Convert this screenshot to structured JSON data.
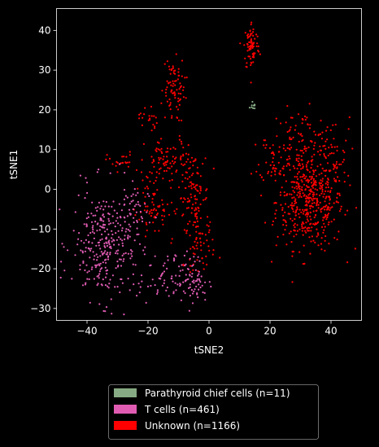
{
  "chart_data": {
    "type": "scatter",
    "xlabel": "tSNE2",
    "ylabel": "tSNE1",
    "xlim": [
      -50,
      50
    ],
    "ylim": [
      -33,
      45.5
    ],
    "xticks": [
      -40,
      -20,
      0,
      20,
      40
    ],
    "yticks": [
      -30,
      -20,
      -10,
      0,
      10,
      20,
      30,
      40
    ],
    "background": "#000000",
    "legend_position": "below plot",
    "series": [
      {
        "name": "Parathyroid chief cells (n=11)",
        "color": "#86aa84",
        "count": 11,
        "clusters": [
          {
            "cx": 14.5,
            "cy": 21.3,
            "sx": 0.35,
            "sy": 0.5,
            "n": 11
          }
        ]
      },
      {
        "name": "T cells (n=461)",
        "color": "#e05cb3",
        "count": 461,
        "clusters": [
          {
            "cx": -34,
            "cy": -14,
            "sx": 5.5,
            "sy": 7,
            "n": 300
          },
          {
            "cx": -26,
            "cy": -6,
            "sx": 3,
            "sy": 4,
            "n": 40
          },
          {
            "cx": -14,
            "cy": -23,
            "sx": 4.5,
            "sy": 3,
            "n": 65
          },
          {
            "cx": -5,
            "cy": -23,
            "sx": 2.5,
            "sy": 3.5,
            "n": 56
          }
        ]
      },
      {
        "name": "Unknown (n=1166)",
        "color": "#ff0000",
        "count": 1166,
        "clusters": [
          {
            "cx": 33,
            "cy": -3,
            "sx": 5.5,
            "sy": 6,
            "n": 470
          },
          {
            "cx": 30,
            "cy": 12,
            "sx": 5,
            "sy": 4,
            "n": 90
          },
          {
            "cx": 40,
            "cy": 8,
            "sx": 3,
            "sy": 5,
            "n": 45
          },
          {
            "cx": 14,
            "cy": 36,
            "sx": 1.3,
            "sy": 3.2,
            "n": 80
          },
          {
            "cx": 21,
            "cy": 8,
            "sx": 2.2,
            "sy": 3,
            "n": 40
          },
          {
            "cx": -12,
            "cy": 27,
            "sx": 2,
            "sy": 3,
            "n": 55
          },
          {
            "cx": -12,
            "cy": 21,
            "sx": 2,
            "sy": 2,
            "n": 25
          },
          {
            "cx": -20,
            "cy": 18,
            "sx": 1.5,
            "sy": 2,
            "n": 20
          },
          {
            "cx": -29,
            "cy": 7,
            "sx": 2.2,
            "sy": 1.2,
            "n": 22
          },
          {
            "cx": -13,
            "cy": 7,
            "sx": 4,
            "sy": 3,
            "n": 70
          },
          {
            "cx": -19,
            "cy": 0,
            "sx": 2.5,
            "sy": 4,
            "n": 40
          },
          {
            "cx": -5,
            "cy": -2,
            "sx": 2.5,
            "sy": 6,
            "n": 120
          },
          {
            "cx": -3,
            "cy": -14,
            "sx": 2.5,
            "sy": 3,
            "n": 50
          },
          {
            "cx": -17,
            "cy": -6,
            "sx": 3,
            "sy": 2,
            "n": 39
          }
        ]
      }
    ]
  }
}
